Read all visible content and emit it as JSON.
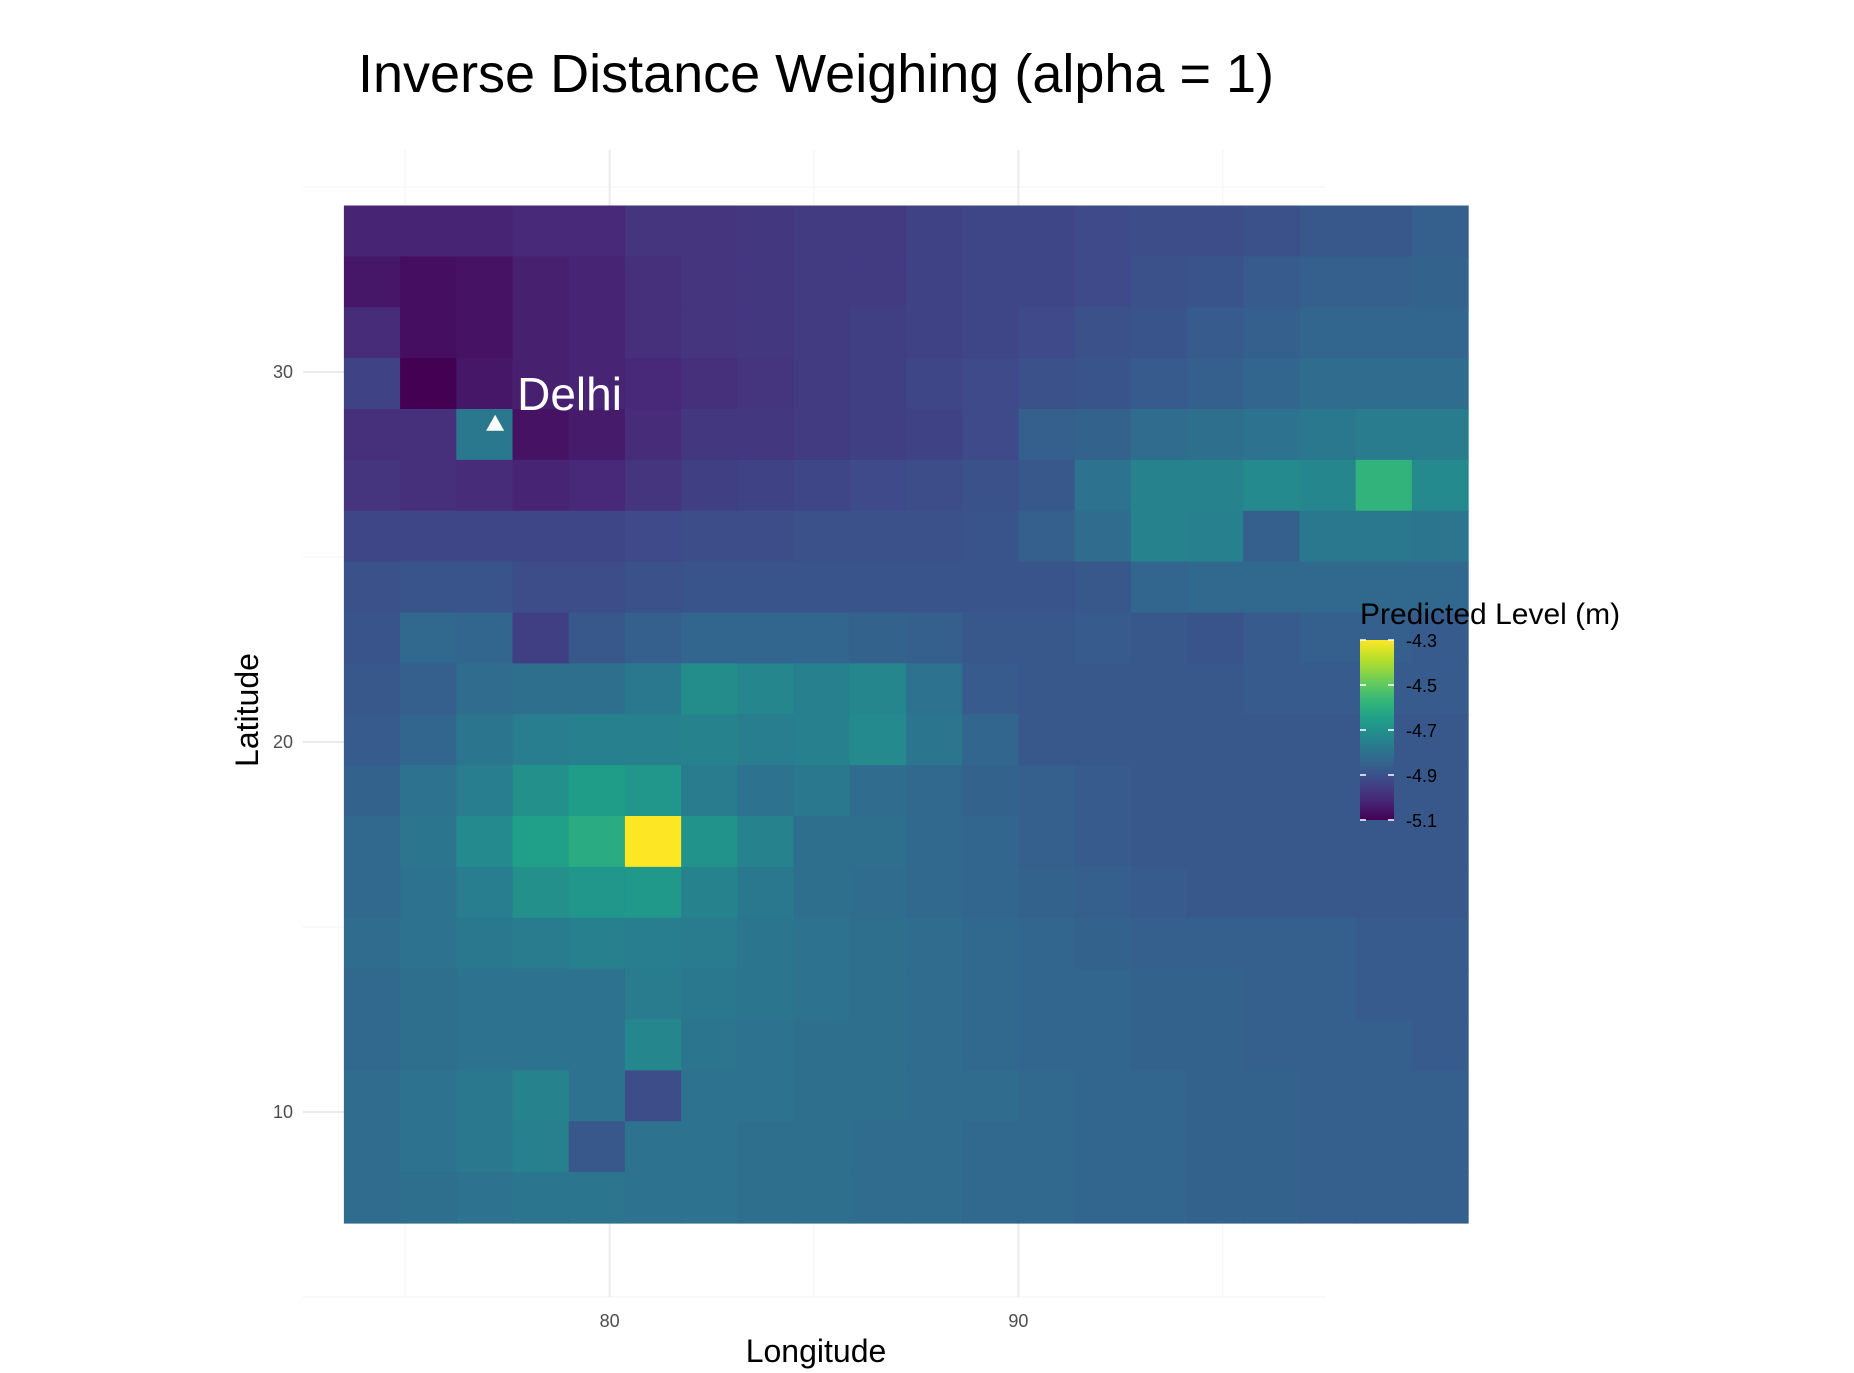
{
  "chart_data": {
    "type": "heatmap",
    "title": "Inverse Distance Weighing (alpha = 1)",
    "xlabel": "Longitude",
    "ylabel": "Latitude",
    "x_ticks": [
      80,
      90
    ],
    "y_ticks": [
      10,
      20,
      30
    ],
    "xlim": [
      72.5,
      97.5
    ],
    "ylim": [
      5.0,
      36.0
    ],
    "cell_x0": 73.5,
    "cell_y0": 7.0,
    "cell_size": 1.375,
    "grid_lines": true,
    "legend": {
      "title": "Predicted Level (m)",
      "position": "right",
      "min": -5.1,
      "max": -4.3,
      "breaks": [
        -4.3,
        -4.5,
        -4.7,
        -4.9,
        -5.1
      ],
      "break_labels": [
        "-4.3",
        "-4.5",
        "-4.7",
        "-4.9",
        "-5.1"
      ]
    },
    "colorscale": [
      "#440154",
      "#482878",
      "#3e4989",
      "#31688e",
      "#26828e",
      "#1f9e89",
      "#35b779",
      "#6ece58",
      "#b5de2b",
      "#fde725"
    ],
    "annotation": {
      "text": "Delhi",
      "lon": 77.2,
      "lat": 28.6,
      "marker": "triangle"
    },
    "values": [
      [
        -5.02,
        -5.02,
        -5.02,
        -5.01,
        -5.01,
        -4.98,
        -4.98,
        -4.97,
        -4.96,
        -4.96,
        -4.94,
        -4.93,
        -4.93,
        -4.92,
        -4.91,
        -4.91,
        -4.9,
        -4.88,
        -4.88,
        -4.86
      ],
      [
        -5.05,
        -5.07,
        -5.06,
        -5.03,
        -5.02,
        -4.99,
        -4.98,
        -4.97,
        -4.96,
        -4.96,
        -4.94,
        -4.93,
        -4.93,
        -4.92,
        -4.9,
        -4.89,
        -4.87,
        -4.86,
        -4.86,
        -4.85
      ],
      [
        -5.0,
        -5.07,
        -5.06,
        -5.03,
        -5.02,
        -4.99,
        -4.98,
        -4.97,
        -4.96,
        -4.95,
        -4.94,
        -4.93,
        -4.92,
        -4.9,
        -4.89,
        -4.87,
        -4.86,
        -4.84,
        -4.84,
        -4.84
      ],
      [
        -4.94,
        -5.11,
        -5.05,
        -5.03,
        -5.02,
        -5.01,
        -4.99,
        -4.98,
        -4.96,
        -4.95,
        -4.93,
        -4.92,
        -4.9,
        -4.89,
        -4.87,
        -4.86,
        -4.84,
        -4.82,
        -4.82,
        -4.82
      ],
      [
        -4.99,
        -4.99,
        -4.78,
        -5.06,
        -5.04,
        -5.0,
        -4.97,
        -4.97,
        -4.96,
        -4.95,
        -4.94,
        -4.92,
        -4.86,
        -4.85,
        -4.82,
        -4.81,
        -4.8,
        -4.78,
        -4.77,
        -4.77
      ],
      [
        -4.98,
        -4.99,
        -5.0,
        -5.02,
        -5.01,
        -4.98,
        -4.95,
        -4.94,
        -4.93,
        -4.92,
        -4.91,
        -4.9,
        -4.88,
        -4.8,
        -4.74,
        -4.74,
        -4.72,
        -4.73,
        -4.58,
        -4.72
      ],
      [
        -4.93,
        -4.93,
        -4.93,
        -4.93,
        -4.93,
        -4.92,
        -4.91,
        -4.91,
        -4.9,
        -4.9,
        -4.9,
        -4.89,
        -4.86,
        -4.82,
        -4.74,
        -4.75,
        -4.86,
        -4.78,
        -4.78,
        -4.79
      ],
      [
        -4.9,
        -4.89,
        -4.89,
        -4.91,
        -4.91,
        -4.9,
        -4.89,
        -4.89,
        -4.89,
        -4.89,
        -4.89,
        -4.89,
        -4.89,
        -4.88,
        -4.84,
        -4.83,
        -4.83,
        -4.83,
        -4.83,
        -4.83
      ],
      [
        -4.89,
        -4.83,
        -4.84,
        -4.95,
        -4.88,
        -4.86,
        -4.84,
        -4.84,
        -4.84,
        -4.85,
        -4.86,
        -4.88,
        -4.88,
        -4.87,
        -4.88,
        -4.89,
        -4.87,
        -4.86,
        -4.86,
        -4.87
      ],
      [
        -4.88,
        -4.86,
        -4.82,
        -4.81,
        -4.81,
        -4.78,
        -4.71,
        -4.73,
        -4.75,
        -4.73,
        -4.8,
        -4.87,
        -4.88,
        -4.88,
        -4.88,
        -4.88,
        -4.87,
        -4.87,
        -4.87,
        -4.87
      ],
      [
        -4.87,
        -4.84,
        -4.79,
        -4.76,
        -4.75,
        -4.75,
        -4.74,
        -4.76,
        -4.75,
        -4.72,
        -4.79,
        -4.84,
        -4.88,
        -4.88,
        -4.88,
        -4.88,
        -4.88,
        -4.88,
        -4.88,
        -4.88
      ],
      [
        -4.85,
        -4.8,
        -4.76,
        -4.7,
        -4.66,
        -4.68,
        -4.77,
        -4.8,
        -4.78,
        -4.82,
        -4.83,
        -4.85,
        -4.86,
        -4.87,
        -4.88,
        -4.88,
        -4.88,
        -4.88,
        -4.88,
        -4.88
      ],
      [
        -4.83,
        -4.79,
        -4.72,
        -4.65,
        -4.61,
        -4.3,
        -4.69,
        -4.74,
        -4.81,
        -4.81,
        -4.83,
        -4.84,
        -4.86,
        -4.87,
        -4.88,
        -4.88,
        -4.88,
        -4.88,
        -4.88,
        -4.88
      ],
      [
        -4.83,
        -4.8,
        -4.76,
        -4.7,
        -4.68,
        -4.67,
        -4.74,
        -4.78,
        -4.81,
        -4.82,
        -4.83,
        -4.84,
        -4.85,
        -4.86,
        -4.87,
        -4.88,
        -4.88,
        -4.88,
        -4.88,
        -4.88
      ],
      [
        -4.82,
        -4.8,
        -4.78,
        -4.77,
        -4.75,
        -4.76,
        -4.77,
        -4.79,
        -4.8,
        -4.81,
        -4.82,
        -4.83,
        -4.84,
        -4.85,
        -4.86,
        -4.86,
        -4.86,
        -4.86,
        -4.87,
        -4.87
      ],
      [
        -4.83,
        -4.81,
        -4.8,
        -4.8,
        -4.8,
        -4.77,
        -4.78,
        -4.79,
        -4.8,
        -4.81,
        -4.82,
        -4.83,
        -4.84,
        -4.84,
        -4.85,
        -4.85,
        -4.86,
        -4.86,
        -4.87,
        -4.87
      ],
      [
        -4.83,
        -4.81,
        -4.8,
        -4.8,
        -4.8,
        -4.73,
        -4.79,
        -4.8,
        -4.81,
        -4.81,
        -4.82,
        -4.83,
        -4.84,
        -4.84,
        -4.85,
        -4.85,
        -4.86,
        -4.86,
        -4.86,
        -4.87
      ],
      [
        -4.82,
        -4.8,
        -4.78,
        -4.74,
        -4.8,
        -4.91,
        -4.8,
        -4.8,
        -4.81,
        -4.81,
        -4.82,
        -4.82,
        -4.83,
        -4.84,
        -4.84,
        -4.85,
        -4.85,
        -4.86,
        -4.86,
        -4.86
      ],
      [
        -4.82,
        -4.8,
        -4.78,
        -4.75,
        -4.88,
        -4.8,
        -4.8,
        -4.81,
        -4.81,
        -4.82,
        -4.82,
        -4.83,
        -4.83,
        -4.84,
        -4.84,
        -4.85,
        -4.85,
        -4.86,
        -4.86,
        -4.86
      ],
      [
        -4.82,
        -4.81,
        -4.8,
        -4.79,
        -4.79,
        -4.8,
        -4.8,
        -4.81,
        -4.81,
        -4.82,
        -4.82,
        -4.83,
        -4.83,
        -4.84,
        -4.84,
        -4.85,
        -4.85,
        -4.86,
        -4.86,
        -4.86
      ]
    ]
  }
}
